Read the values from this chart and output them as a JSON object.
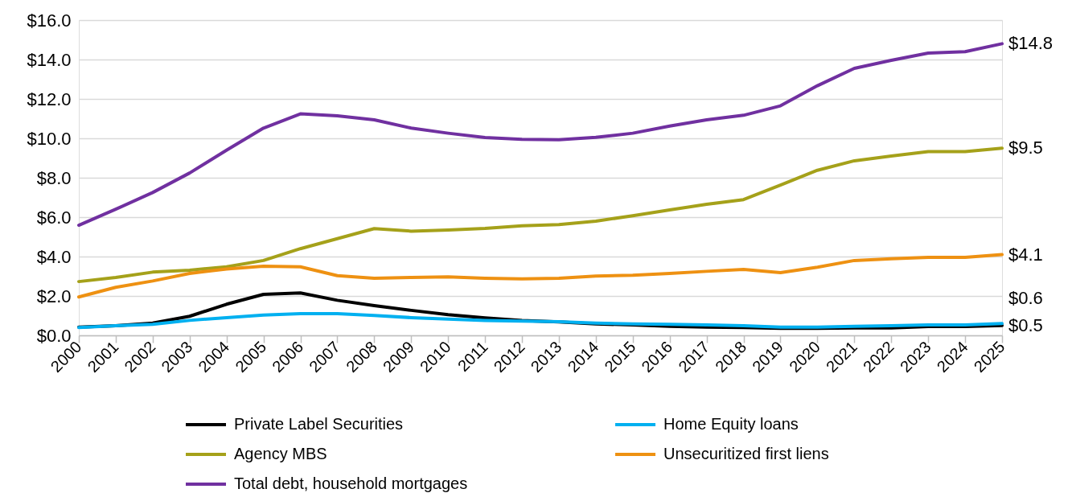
{
  "chart_data": {
    "type": "line",
    "x": [
      2000,
      2001,
      2002,
      2003,
      2004,
      2005,
      2006,
      2007,
      2008,
      2009,
      2010,
      2011,
      2012,
      2013,
      2014,
      2015,
      2016,
      2017,
      2018,
      2019,
      2020,
      2021,
      2022,
      2023,
      2024,
      2025
    ],
    "xlim": [
      2000,
      2025
    ],
    "xticks": [
      2000,
      2001,
      2002,
      2003,
      2004,
      2005,
      2006,
      2007,
      2008,
      2009,
      2010,
      2011,
      2012,
      2013,
      2014,
      2015,
      2016,
      2017,
      2018,
      2019,
      2020,
      2021,
      2022,
      2023,
      2024,
      2025
    ],
    "ylim": [
      0,
      16
    ],
    "yticks": [
      {
        "value": 0,
        "label": "$0.0"
      },
      {
        "value": 2,
        "label": "$2.0"
      },
      {
        "value": 4,
        "label": "$4.0"
      },
      {
        "value": 6,
        "label": "$6.0"
      },
      {
        "value": 8,
        "label": "$8.0"
      },
      {
        "value": 10,
        "label": "$10.0"
      },
      {
        "value": 12,
        "label": "$12.0"
      },
      {
        "value": 14,
        "label": "$14.0"
      },
      {
        "value": 16,
        "label": "$16.0"
      }
    ],
    "grid": "y",
    "legend": "bottom",
    "line_style": "solid",
    "series": [
      {
        "name": "Private Label Securities",
        "color": "#000000",
        "values": [
          0.42,
          0.49,
          0.62,
          0.97,
          1.58,
          2.08,
          2.15,
          1.78,
          1.51,
          1.27,
          1.05,
          0.89,
          0.76,
          0.68,
          0.58,
          0.53,
          0.46,
          0.42,
          0.4,
          0.36,
          0.36,
          0.38,
          0.38,
          0.45,
          0.45,
          0.5
        ],
        "value_labels": [
          null,
          null,
          null,
          null,
          null,
          null,
          null,
          null,
          null,
          null,
          null,
          null,
          null,
          null,
          null,
          null,
          null,
          null,
          null,
          null,
          null,
          null,
          null,
          null,
          null,
          "$0.5"
        ]
      },
      {
        "name": "Home Equity loans",
        "color": "#00b0f0",
        "values": [
          0.4,
          0.49,
          0.56,
          0.76,
          0.9,
          1.03,
          1.1,
          1.1,
          1.01,
          0.9,
          0.83,
          0.76,
          0.72,
          0.69,
          0.62,
          0.58,
          0.56,
          0.53,
          0.49,
          0.42,
          0.42,
          0.46,
          0.49,
          0.53,
          0.53,
          0.6
        ],
        "value_labels": [
          null,
          null,
          null,
          null,
          null,
          null,
          null,
          null,
          null,
          null,
          null,
          null,
          null,
          null,
          null,
          null,
          null,
          null,
          null,
          null,
          null,
          null,
          null,
          null,
          null,
          "$0.6"
        ]
      },
      {
        "name": "Agency MBS",
        "color": "#a5a11a",
        "values": [
          2.73,
          2.94,
          3.21,
          3.31,
          3.48,
          3.8,
          4.4,
          4.91,
          5.42,
          5.29,
          5.35,
          5.43,
          5.56,
          5.62,
          5.8,
          6.07,
          6.37,
          6.65,
          6.89,
          7.63,
          8.38,
          8.86,
          9.1,
          9.33,
          9.33,
          9.5
        ],
        "value_labels": [
          null,
          null,
          null,
          null,
          null,
          null,
          null,
          null,
          null,
          null,
          null,
          null,
          null,
          null,
          null,
          null,
          null,
          null,
          null,
          null,
          null,
          null,
          null,
          null,
          null,
          "$9.5"
        ]
      },
      {
        "name": "Unsecuritized first liens",
        "color": "#ee9112",
        "values": [
          1.95,
          2.44,
          2.76,
          3.14,
          3.37,
          3.51,
          3.48,
          3.03,
          2.9,
          2.94,
          2.97,
          2.9,
          2.87,
          2.9,
          3.01,
          3.05,
          3.14,
          3.25,
          3.35,
          3.18,
          3.46,
          3.8,
          3.89,
          3.96,
          3.96,
          4.1
        ],
        "value_labels": [
          null,
          null,
          null,
          null,
          null,
          null,
          null,
          null,
          null,
          null,
          null,
          null,
          null,
          null,
          null,
          null,
          null,
          null,
          null,
          null,
          null,
          null,
          null,
          null,
          null,
          "$4.1"
        ]
      },
      {
        "name": "Total debt, household mortgages",
        "color": "#7030a0",
        "values": [
          5.59,
          6.4,
          7.25,
          8.24,
          9.4,
          10.52,
          11.24,
          11.14,
          10.94,
          10.52,
          10.26,
          10.04,
          9.95,
          9.93,
          10.05,
          10.26,
          10.62,
          10.94,
          11.17,
          11.65,
          12.67,
          13.55,
          13.96,
          14.33,
          14.4,
          14.8
        ],
        "value_labels": [
          null,
          null,
          null,
          null,
          null,
          null,
          null,
          null,
          null,
          null,
          null,
          null,
          null,
          null,
          null,
          null,
          null,
          null,
          null,
          null,
          null,
          null,
          null,
          null,
          null,
          "$14.8"
        ]
      }
    ]
  }
}
